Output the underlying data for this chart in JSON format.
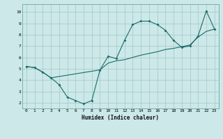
{
  "xlabel": "Humidex (Indice chaleur)",
  "background_color": "#cce8e8",
  "grid_color": "#aacccc",
  "line_color": "#1a6b6b",
  "line1_x": [
    0,
    1,
    2,
    3,
    4,
    5,
    6,
    7,
    8,
    9,
    10,
    11,
    12,
    13,
    14,
    15,
    16,
    17,
    18,
    19,
    20,
    21,
    22,
    23
  ],
  "line1_y": [
    5.2,
    5.1,
    4.7,
    4.2,
    3.6,
    2.5,
    2.2,
    1.9,
    2.2,
    4.9,
    6.1,
    5.9,
    7.5,
    8.9,
    9.2,
    9.2,
    8.9,
    8.4,
    7.5,
    6.9,
    7.0,
    7.9,
    10.1,
    8.5
  ],
  "line2_x": [
    0,
    1,
    2,
    3,
    9,
    10,
    11,
    12,
    13,
    14,
    15,
    16,
    17,
    18,
    19,
    20,
    21,
    22,
    23
  ],
  "line2_y": [
    5.2,
    5.1,
    4.7,
    4.2,
    4.9,
    5.5,
    5.7,
    5.8,
    6.0,
    6.2,
    6.35,
    6.5,
    6.7,
    6.8,
    6.95,
    7.1,
    7.8,
    8.3,
    8.5
  ],
  "xlim": [
    -0.5,
    23.5
  ],
  "ylim": [
    1.5,
    10.7
  ],
  "xticks": [
    0,
    1,
    2,
    3,
    4,
    5,
    6,
    7,
    8,
    9,
    10,
    11,
    12,
    13,
    14,
    15,
    16,
    17,
    18,
    19,
    20,
    21,
    22,
    23
  ],
  "yticks": [
    2,
    3,
    4,
    5,
    6,
    7,
    8,
    9,
    10
  ]
}
